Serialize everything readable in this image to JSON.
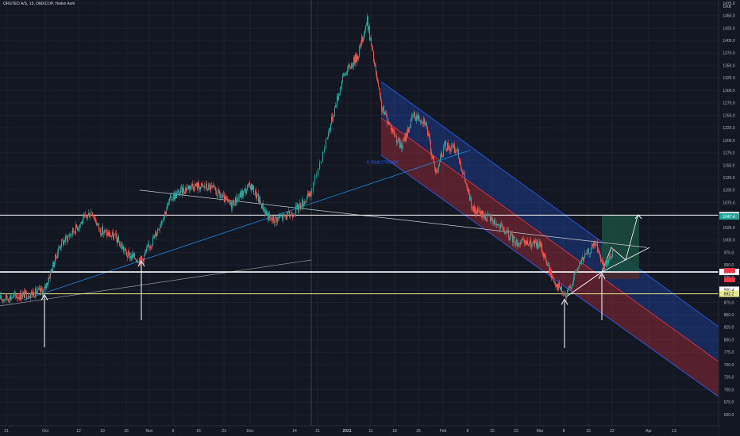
{
  "header": {
    "title": "ORSTED A/S, 15, OMXCOP, Heikin Ashi"
  },
  "colors": {
    "background": "#131722",
    "grid": "#1c2030",
    "candle_up": "#26a69a",
    "candle_down": "#ef5350",
    "channel_blue": "#2962ff",
    "channel_red": "#f23645",
    "white_level": "#ffffff",
    "yellow_level": "#e6e68a",
    "trend_line": "#2196f3",
    "target_box": "#1b4d3e"
  },
  "chart_data": {
    "type": "candlestick",
    "symbol": "ORSTED A/S",
    "timeframe": "15",
    "exchange": "OMXCOP",
    "style": "Heikin Ashi",
    "currency_label": "DKK",
    "y_axis": {
      "min": 650,
      "max": 1475,
      "scale": "linear",
      "tick_labels": [
        "1475.0",
        "1450.0",
        "1425.0",
        "1400.0",
        "1375.0",
        "1350.0",
        "1325.0",
        "1300.0",
        "1275.0",
        "1250.0",
        "1225.0",
        "1200.0",
        "1175.0",
        "1150.0",
        "1125.0",
        "1100.0",
        "1075.0",
        "1050.0",
        "1025.0",
        "1000.0",
        "975.0",
        "950.0",
        "925.0",
        "900.0",
        "875.0",
        "850.0",
        "825.0",
        "800.0",
        "775.0",
        "750.0",
        "725.0",
        "700.0",
        "675.0",
        "650.0"
      ]
    },
    "x_axis": {
      "tick_labels": [
        "21",
        "Oct",
        "12",
        "19",
        "26",
        "Nov",
        "9",
        "16",
        "23",
        "Dec",
        "14",
        "21",
        "2021",
        "11",
        "18",
        "25",
        "Feb",
        "8",
        "15",
        "22",
        "Mar",
        "8",
        "15",
        "22",
        "Apr",
        "13"
      ]
    },
    "price_path": [
      {
        "i": 0,
        "y": 882
      },
      {
        "i": 55,
        "y": 898
      },
      {
        "i": 75,
        "y": 990
      },
      {
        "i": 90,
        "y": 1015
      },
      {
        "i": 115,
        "y": 1058
      },
      {
        "i": 125,
        "y": 1020
      },
      {
        "i": 145,
        "y": 1005
      },
      {
        "i": 160,
        "y": 970
      },
      {
        "i": 178,
        "y": 960
      },
      {
        "i": 195,
        "y": 1010
      },
      {
        "i": 215,
        "y": 1085
      },
      {
        "i": 240,
        "y": 1110
      },
      {
        "i": 265,
        "y": 1105
      },
      {
        "i": 290,
        "y": 1070
      },
      {
        "i": 315,
        "y": 1110
      },
      {
        "i": 340,
        "y": 1040
      },
      {
        "i": 365,
        "y": 1050
      },
      {
        "i": 390,
        "y": 1090
      },
      {
        "i": 412,
        "y": 1210
      },
      {
        "i": 432,
        "y": 1330
      },
      {
        "i": 450,
        "y": 1370
      },
      {
        "i": 462,
        "y": 1440
      },
      {
        "i": 480,
        "y": 1265
      },
      {
        "i": 505,
        "y": 1185
      },
      {
        "i": 520,
        "y": 1250
      },
      {
        "i": 535,
        "y": 1240
      },
      {
        "i": 548,
        "y": 1135
      },
      {
        "i": 560,
        "y": 1190
      },
      {
        "i": 575,
        "y": 1180
      },
      {
        "i": 595,
        "y": 1060
      },
      {
        "i": 620,
        "y": 1040
      },
      {
        "i": 650,
        "y": 995
      },
      {
        "i": 680,
        "y": 990
      },
      {
        "i": 695,
        "y": 925
      },
      {
        "i": 712,
        "y": 885
      },
      {
        "i": 730,
        "y": 955
      },
      {
        "i": 750,
        "y": 995
      },
      {
        "i": 760,
        "y": 940
      },
      {
        "i": 772,
        "y": 978
      }
    ],
    "horizontal_levels": [
      {
        "name": "resistance",
        "price": 1050.0,
        "label": "1050.0",
        "color": "#ffffff"
      },
      {
        "name": "last_close",
        "price": 1047.4,
        "label": "1047.4",
        "color": "#2e5c52"
      },
      {
        "name": "support",
        "price": 936.0,
        "label": "936.0",
        "color": "#ffffff"
      },
      {
        "name": "support_low",
        "price": 900.4,
        "label": "900.4",
        "color": "#ffffff"
      },
      {
        "name": "yellow",
        "price": 892.2,
        "label": "892.2",
        "color": "#e6e68a"
      }
    ],
    "annotations": [
      {
        "type": "channel_text",
        "text": "0.7818127929697",
        "color": "#2962ff"
      }
    ],
    "markers": [
      "up-arrow",
      "up-arrow",
      "up-arrow",
      "up-arrow",
      "up-arrow"
    ]
  }
}
